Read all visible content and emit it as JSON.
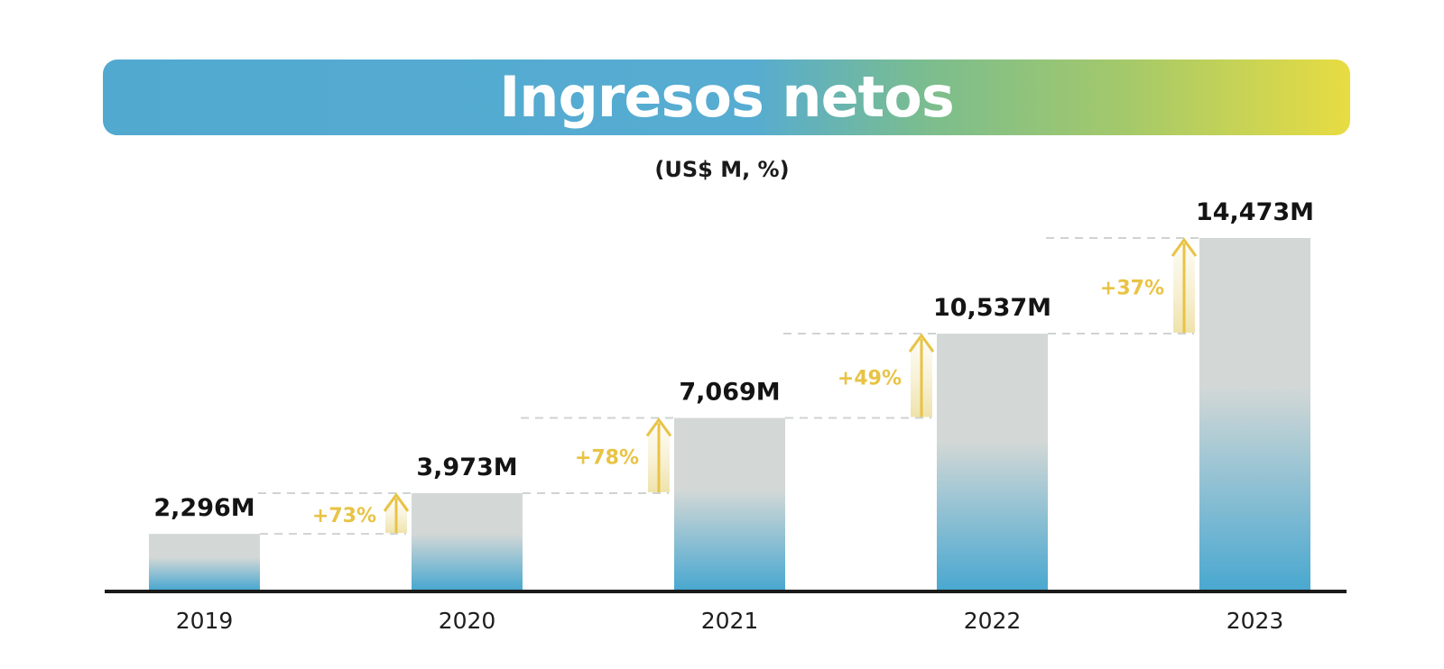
{
  "chart_data": {
    "type": "bar",
    "title": "Ingresos netos",
    "subtitle": "(US$ M, %)",
    "categories": [
      "2019",
      "2020",
      "2021",
      "2022",
      "2023"
    ],
    "values": [
      2296,
      3973,
      7069,
      10537,
      14473
    ],
    "value_labels": [
      "2,296M",
      "3,973M",
      "7,069M",
      "10,537M",
      "14,473M"
    ],
    "growth_labels": [
      "+73%",
      "+78%",
      "+49%",
      "+37%"
    ],
    "ylim": [
      0,
      14473
    ],
    "grid": false,
    "legend": "none",
    "colors": {
      "bar_top": "#d3d8d6",
      "bar_bottom": "#4aa8d0",
      "growth": "#e8c345",
      "axis": "#1a1a1a"
    }
  }
}
